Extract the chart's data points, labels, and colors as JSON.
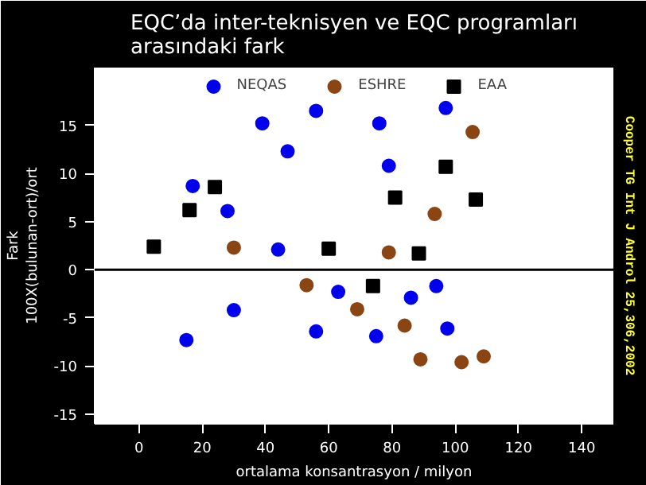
{
  "chart_data": {
    "type": "scatter",
    "title": "EQC’da inter-teknisyen ve EQC programları\narasındaki fark",
    "xlabel": "ortalama konsantrasyon / milyon",
    "ylabel": "Fark\n100X(bulunan-ort)/ort",
    "annotations": [
      "Cooper TG Int J Androl 25,306,2002"
    ],
    "series": [
      {
        "name": "NEQAS",
        "color": "#0000ee",
        "marker": "circle",
        "x": [
          17,
          28,
          39,
          47,
          56,
          76,
          79,
          97,
          44,
          15,
          30,
          63,
          56,
          75,
          86,
          94,
          97.5
        ],
        "values": [
          8.7,
          6.1,
          15.2,
          12.3,
          16.5,
          15.2,
          10.8,
          16.8,
          2.1,
          -7.3,
          -4.2,
          -2.3,
          -6.4,
          -6.9,
          -2.9,
          -1.7,
          -6.1
        ]
      },
      {
        "name": "ESHRE",
        "color": "#8b4513",
        "marker": "circle",
        "x": [
          30,
          79,
          93.5,
          105.5,
          53,
          69,
          84,
          89,
          102,
          109
        ],
        "values": [
          2.3,
          1.8,
          5.8,
          14.3,
          -1.6,
          -4.1,
          -5.8,
          -9.3,
          -9.6,
          -9.0
        ]
      },
      {
        "name": "EAA",
        "color": "#000000",
        "marker": "square",
        "x": [
          4.7,
          16,
          24,
          60,
          81,
          88.5,
          97,
          106.5,
          74
        ],
        "values": [
          2.4,
          6.2,
          8.6,
          2.2,
          7.5,
          1.7,
          10.7,
          7.3,
          -1.7
        ]
      }
    ],
    "xlim": [
      -14,
      150
    ],
    "ylim": [
      -16,
      21
    ],
    "xticks": [
      0,
      20,
      40,
      60,
      80,
      100,
      120,
      140
    ],
    "yticks": [
      -15,
      -10,
      -5,
      0,
      5,
      10,
      15
    ],
    "ref_lines": [
      {
        "axis": "y",
        "value": 0,
        "color": "#000000"
      }
    ],
    "grid": false,
    "legend": "top"
  }
}
